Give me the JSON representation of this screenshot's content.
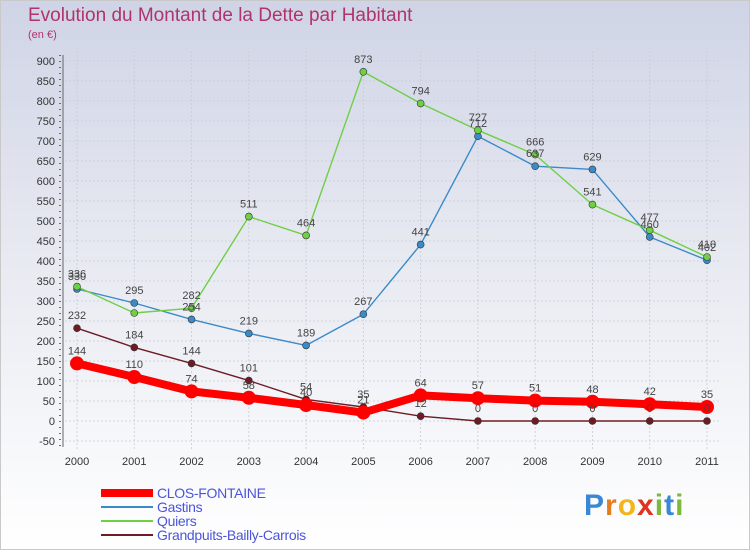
{
  "title": "Evolution du Montant de la Dette par Habitant",
  "unit": "(en €)",
  "logo": {
    "letters": [
      "P",
      "r",
      "o",
      "x",
      "i",
      "t",
      "i"
    ],
    "colors": [
      "#3a87d6",
      "#e57c1e",
      "#f3b51d",
      "#e0321f",
      "#7ab93a",
      "#3a87d6",
      "#7ab93a"
    ]
  },
  "chart_data": {
    "type": "line",
    "title": "Evolution du Montant de la Dette par Habitant",
    "ylabel": "(en €)",
    "x": [
      "2000",
      "2001",
      "2002",
      "2003",
      "2004",
      "2005",
      "2006",
      "2007",
      "2008",
      "2009",
      "2010",
      "2011"
    ],
    "ylim": [
      -50,
      900
    ],
    "yticks": [
      -50,
      0,
      50,
      100,
      150,
      200,
      250,
      300,
      350,
      400,
      450,
      500,
      550,
      600,
      650,
      700,
      750,
      800,
      850,
      900
    ],
    "grid": true,
    "legend": "bottom-left",
    "series": [
      {
        "name": "CLOS-FONTAINE",
        "color": "#ff0000",
        "values": [
          144,
          110,
          74,
          58,
          40,
          21,
          64,
          57,
          51,
          48,
          42,
          35
        ],
        "labels": [
          "144",
          "110",
          "74",
          "58",
          "40",
          "21",
          "64",
          "57",
          "51",
          "48",
          "42",
          "35"
        ]
      },
      {
        "name": "Gastins",
        "color": "#3b8bc7",
        "values": [
          330,
          295,
          254,
          219,
          189,
          267,
          441,
          712,
          637,
          629,
          460,
          402
        ],
        "labels": [
          "330",
          "295",
          "254",
          "219",
          "189",
          "267",
          "441",
          "712",
          "637",
          "629",
          "460",
          "402"
        ]
      },
      {
        "name": "Quiers",
        "color": "#6fcf45",
        "values": [
          336,
          270,
          282,
          511,
          464,
          873,
          794,
          727,
          666,
          541,
          477,
          410
        ],
        "labels": [
          "336",
          "",
          "282",
          "511",
          "464",
          "873",
          "794",
          "727",
          "666",
          "541",
          "477",
          "410"
        ]
      },
      {
        "name": "Grandpuits-Bailly-Carrois",
        "color": "#6e1b24",
        "values": [
          232,
          184,
          144,
          101,
          54,
          35,
          12,
          0,
          0,
          0,
          0,
          0
        ],
        "labels": [
          "232",
          "184",
          "144",
          "101",
          "54",
          "35",
          "12",
          "0",
          "0",
          "0",
          "0",
          "0"
        ]
      }
    ]
  }
}
